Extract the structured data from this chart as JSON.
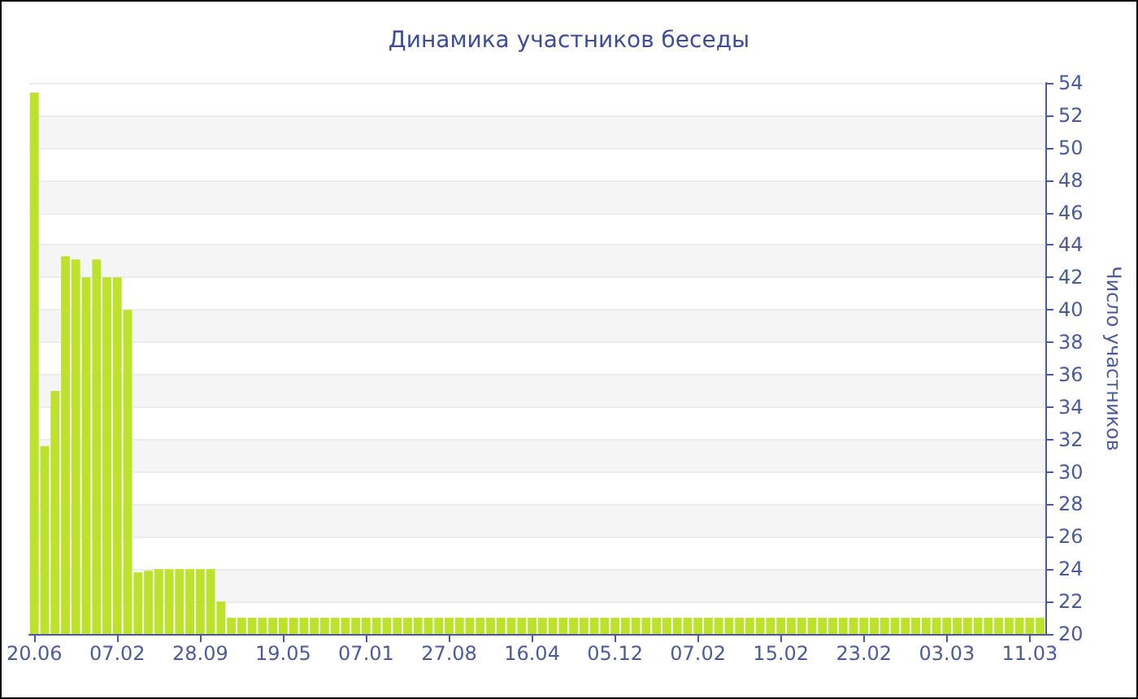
{
  "chart_data": {
    "type": "bar",
    "title": "Динамика участников беседы",
    "ylabel": "Число участников",
    "categories": [
      "20.06",
      null,
      null,
      null,
      null,
      null,
      null,
      null,
      "07.02",
      null,
      null,
      null,
      null,
      null,
      null,
      null,
      "28.09",
      null,
      null,
      null,
      null,
      null,
      null,
      null,
      "19.05",
      null,
      null,
      null,
      null,
      null,
      null,
      null,
      "07.01",
      null,
      null,
      null,
      null,
      null,
      null,
      null,
      "27.08",
      null,
      null,
      null,
      null,
      null,
      null,
      null,
      "16.04",
      null,
      null,
      null,
      null,
      null,
      null,
      null,
      "05.12",
      null,
      null,
      null,
      null,
      null,
      null,
      null,
      "07.02",
      null,
      null,
      null,
      null,
      null,
      null,
      null,
      "15.02",
      null,
      null,
      null,
      null,
      null,
      null,
      null,
      "23.02",
      null,
      null,
      null,
      null,
      null,
      null,
      null,
      "03.03",
      null,
      null,
      null,
      null,
      null,
      null,
      null,
      "11.03",
      null
    ],
    "values": [
      53.4,
      31.6,
      35,
      43.3,
      43.1,
      42,
      43.1,
      42,
      42,
      40,
      23.8,
      23.9,
      24,
      24,
      24,
      24,
      24,
      24,
      22,
      21,
      21,
      21,
      21,
      21,
      21,
      21,
      21,
      21,
      21,
      21,
      21,
      21,
      21,
      21,
      21,
      21,
      21,
      21,
      21,
      21,
      21,
      21,
      21,
      21,
      21,
      21,
      21,
      21,
      21,
      21,
      21,
      21,
      21,
      21,
      21,
      21,
      21,
      21,
      21,
      21,
      21,
      21,
      21,
      21,
      21,
      21,
      21,
      21,
      21,
      21,
      21,
      21,
      21,
      21,
      21,
      21,
      21,
      21,
      21,
      21,
      21,
      21,
      21,
      21,
      21,
      21,
      21,
      21,
      21,
      21,
      21,
      21,
      21,
      21,
      21,
      21,
      21,
      21
    ],
    "color": "#bde22c",
    "ylim": [
      20,
      54
    ],
    "yticks": [
      20,
      22,
      24,
      26,
      28,
      30,
      32,
      34,
      36,
      38,
      40,
      42,
      44,
      46,
      48,
      50,
      52,
      54
    ],
    "grid": "y"
  }
}
